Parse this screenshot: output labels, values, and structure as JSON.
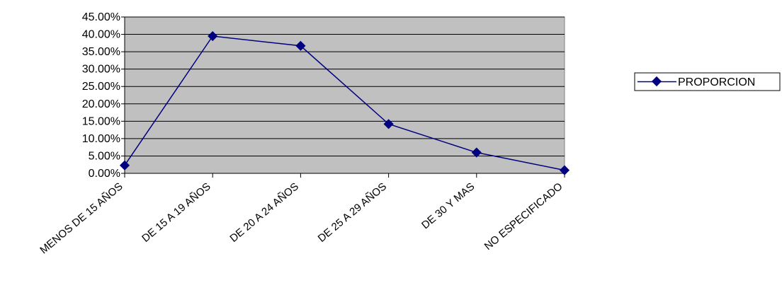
{
  "chart_data": {
    "type": "line",
    "title": "",
    "xlabel": "",
    "ylabel": "",
    "categories": [
      "MENOS DE 15 AÑOS",
      "DE 15 A 19 AÑOS",
      "DE 20 A 24 AÑOS",
      "DE 25 A 29 AÑOS",
      "DE 30 Y MAS",
      "NO ESPECIFICADO"
    ],
    "series": [
      {
        "name": "PROPORCION",
        "values": [
          0.023,
          0.395,
          0.367,
          0.142,
          0.06,
          0.009
        ]
      }
    ],
    "ylim": [
      0,
      0.45
    ],
    "yticks": [
      "0.00%",
      "5.00%",
      "10.00%",
      "15.00%",
      "20.00%",
      "25.00%",
      "30.00%",
      "35.00%",
      "40.00%",
      "45.00%"
    ],
    "grid": true,
    "legend_position": "right",
    "colors": {
      "plot_background": "#c0c0c0",
      "series": "#000080",
      "grid": "#000000"
    }
  }
}
